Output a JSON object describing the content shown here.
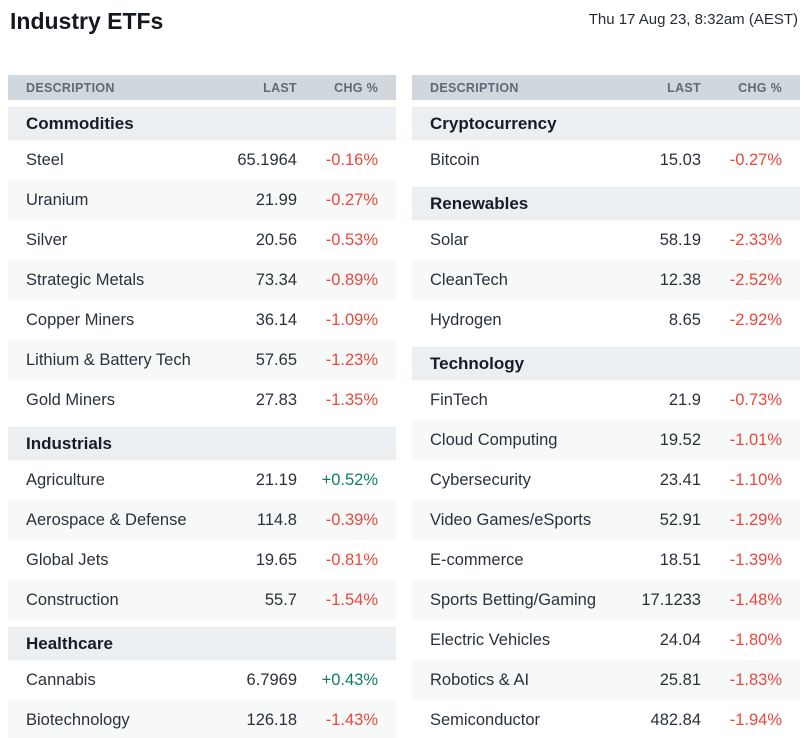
{
  "page": {
    "title": "Industry ETFs",
    "timestamp": "Thu 17 Aug 23, 8:32am (AEST)"
  },
  "columns": {
    "description": "DESCRIPTION",
    "last": "LAST",
    "chg": "CHG %"
  },
  "colors": {
    "negative": "#ef463d",
    "positive": "#0d7c66",
    "header_bg": "#d1d8dd",
    "header_text": "#5b6b79",
    "section_bg": "#eceff2",
    "row_alt_bg": "#f7f8f8"
  },
  "tables": [
    {
      "name": "left",
      "sections": [
        {
          "title": "Commodities",
          "rows": [
            {
              "description": "Steel",
              "last": "65.1964",
              "chg": "-0.16%",
              "direction": "down"
            },
            {
              "description": "Uranium",
              "last": "21.99",
              "chg": "-0.27%",
              "direction": "down"
            },
            {
              "description": "Silver",
              "last": "20.56",
              "chg": "-0.53%",
              "direction": "down"
            },
            {
              "description": "Strategic Metals",
              "last": "73.34",
              "chg": "-0.89%",
              "direction": "down"
            },
            {
              "description": "Copper Miners",
              "last": "36.14",
              "chg": "-1.09%",
              "direction": "down"
            },
            {
              "description": "Lithium & Battery Tech",
              "last": "57.65",
              "chg": "-1.23%",
              "direction": "down"
            },
            {
              "description": "Gold Miners",
              "last": "27.83",
              "chg": "-1.35%",
              "direction": "down"
            }
          ]
        },
        {
          "title": "Industrials",
          "rows": [
            {
              "description": "Agriculture",
              "last": "21.19",
              "chg": "+0.52%",
              "direction": "up"
            },
            {
              "description": "Aerospace & Defense",
              "last": "114.8",
              "chg": "-0.39%",
              "direction": "down"
            },
            {
              "description": "Global Jets",
              "last": "19.65",
              "chg": "-0.81%",
              "direction": "down"
            },
            {
              "description": "Construction",
              "last": "55.7",
              "chg": "-1.54%",
              "direction": "down"
            }
          ]
        },
        {
          "title": "Healthcare",
          "rows": [
            {
              "description": "Cannabis",
              "last": "6.7969",
              "chg": "+0.43%",
              "direction": "up"
            },
            {
              "description": "Biotechnology",
              "last": "126.18",
              "chg": "-1.43%",
              "direction": "down"
            }
          ]
        }
      ]
    },
    {
      "name": "right",
      "sections": [
        {
          "title": "Cryptocurrency",
          "rows": [
            {
              "description": "Bitcoin",
              "last": "15.03",
              "chg": "-0.27%",
              "direction": "down"
            }
          ]
        },
        {
          "title": "Renewables",
          "rows": [
            {
              "description": "Solar",
              "last": "58.19",
              "chg": "-2.33%",
              "direction": "down"
            },
            {
              "description": "CleanTech",
              "last": "12.38",
              "chg": "-2.52%",
              "direction": "down"
            },
            {
              "description": "Hydrogen",
              "last": "8.65",
              "chg": "-2.92%",
              "direction": "down"
            }
          ]
        },
        {
          "title": "Technology",
          "rows": [
            {
              "description": "FinTech",
              "last": "21.9",
              "chg": "-0.73%",
              "direction": "down"
            },
            {
              "description": "Cloud Computing",
              "last": "19.52",
              "chg": "-1.01%",
              "direction": "down"
            },
            {
              "description": "Cybersecurity",
              "last": "23.41",
              "chg": "-1.10%",
              "direction": "down"
            },
            {
              "description": "Video Games/eSports",
              "last": "52.91",
              "chg": "-1.29%",
              "direction": "down"
            },
            {
              "description": "E-commerce",
              "last": "18.51",
              "chg": "-1.39%",
              "direction": "down"
            },
            {
              "description": "Sports Betting/Gaming",
              "last": "17.1233",
              "chg": "-1.48%",
              "direction": "down"
            },
            {
              "description": "Electric Vehicles",
              "last": "24.04",
              "chg": "-1.80%",
              "direction": "down"
            },
            {
              "description": "Robotics & AI",
              "last": "25.81",
              "chg": "-1.83%",
              "direction": "down"
            },
            {
              "description": "Semiconductor",
              "last": "482.84",
              "chg": "-1.94%",
              "direction": "down"
            }
          ]
        }
      ]
    }
  ]
}
